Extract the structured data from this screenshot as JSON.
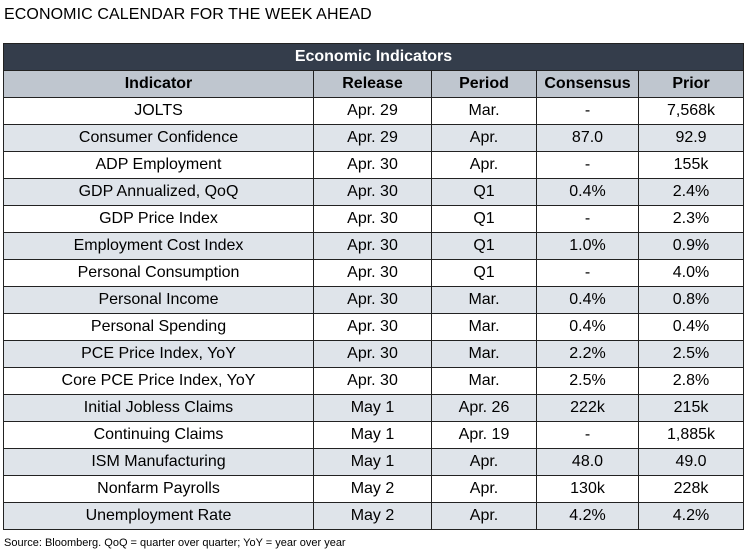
{
  "title": "ECONOMIC CALENDAR FOR THE WEEK AHEAD",
  "table": {
    "banner": "Economic Indicators",
    "headers": [
      "Indicator",
      "Release",
      "Period",
      "Consensus",
      "Prior"
    ],
    "rows": [
      [
        "JOLTS",
        "Apr. 29",
        "Mar.",
        "-",
        "7,568k"
      ],
      [
        "Consumer Confidence",
        "Apr. 29",
        "Apr.",
        "87.0",
        "92.9"
      ],
      [
        "ADP Employment",
        "Apr. 30",
        "Apr.",
        "-",
        "155k"
      ],
      [
        "GDP Annualized, QoQ",
        "Apr. 30",
        "Q1",
        "0.4%",
        "2.4%"
      ],
      [
        "GDP Price Index",
        "Apr. 30",
        "Q1",
        "-",
        "2.3%"
      ],
      [
        "Employment Cost Index",
        "Apr. 30",
        "Q1",
        "1.0%",
        "0.9%"
      ],
      [
        "Personal Consumption",
        "Apr. 30",
        "Q1",
        "-",
        "4.0%"
      ],
      [
        "Personal Income",
        "Apr. 30",
        "Mar.",
        "0.4%",
        "0.8%"
      ],
      [
        "Personal Spending",
        "Apr. 30",
        "Mar.",
        "0.4%",
        "0.4%"
      ],
      [
        "PCE Price Index, YoY",
        "Apr. 30",
        "Mar.",
        "2.2%",
        "2.5%"
      ],
      [
        "Core PCE Price Index, YoY",
        "Apr. 30",
        "Mar.",
        "2.5%",
        "2.8%"
      ],
      [
        "Initial Jobless Claims",
        "May 1",
        "Apr. 26",
        "222k",
        "215k"
      ],
      [
        "Continuing Claims",
        "May 1",
        "Apr. 19",
        "-",
        "1,885k"
      ],
      [
        "ISM Manufacturing",
        "May 1",
        "Apr.",
        "48.0",
        "49.0"
      ],
      [
        "Nonfarm Payrolls",
        "May 2",
        "Apr.",
        "130k",
        "228k"
      ],
      [
        "Unemployment Rate",
        "May 2",
        "Apr.",
        "4.2%",
        "4.2%"
      ]
    ]
  },
  "source": "Source: Bloomberg. QoQ = quarter over quarter; YoY = year over year",
  "colors": {
    "banner_bg": "#343d4b",
    "header_bg": "#bfc6cf",
    "stripe_bg": "#dfe4ea"
  }
}
